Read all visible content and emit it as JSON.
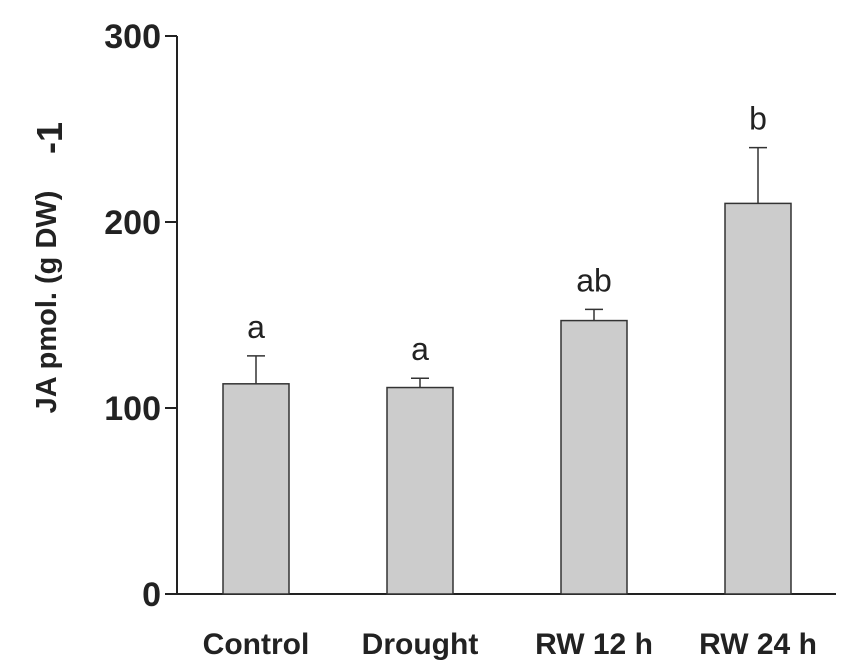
{
  "chart_data": {
    "type": "bar",
    "title": "",
    "xlabel": "",
    "ylabel": "JA pmol. (g  DW)",
    "ylabel_superscript": "-1",
    "ylim": [
      0,
      300
    ],
    "yticks": [
      "0",
      "100",
      "200",
      "300"
    ],
    "categories": [
      "Control",
      "Drought",
      "RW 12 h",
      "RW 24 h"
    ],
    "series": [
      {
        "values": [
          113,
          111,
          147,
          210
        ],
        "errors": [
          15,
          5,
          6,
          30
        ],
        "significance": [
          "a",
          "a",
          "ab",
          "b"
        ]
      }
    ],
    "bar_color": "#cccccc",
    "bar_edge_color": "#333333",
    "grid": false,
    "legend": "none"
  }
}
